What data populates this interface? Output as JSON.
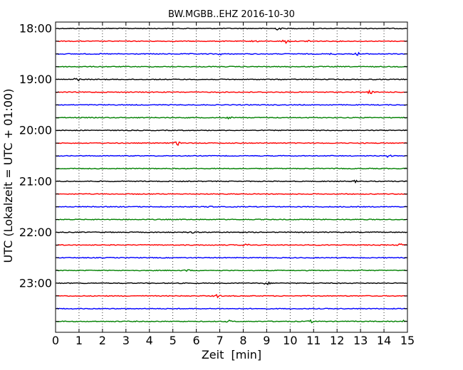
{
  "chart_data": {
    "type": "line",
    "title": "BW.MGBB..EHZ 2016-10-30",
    "xlabel": "Zeit  [min]",
    "ylabel": "UTC (Lokalzeit = UTC + 01:00)",
    "xlim": [
      0,
      15
    ],
    "xticks": [
      0,
      1,
      2,
      3,
      4,
      5,
      6,
      7,
      8,
      9,
      10,
      11,
      12,
      13,
      14,
      15
    ],
    "yticks": [
      "18:00",
      "19:00",
      "20:00",
      "21:00",
      "22:00",
      "23:00"
    ],
    "x_grid": "dotted vertical lines at each minute",
    "trace_interval_minutes": 15,
    "color_cycle": [
      "#000000",
      "#ff0000",
      "#0000ff",
      "#008000"
    ],
    "series": [
      {
        "start": "18:00",
        "events": [
          {
            "x": 9.5,
            "amp": 0.4
          }
        ]
      },
      {
        "start": "18:15",
        "events": [
          {
            "x": 8.5,
            "amp": 0.3
          },
          {
            "x": 9.8,
            "amp": 0.6
          },
          {
            "x": 10.8,
            "amp": 0.3
          }
        ]
      },
      {
        "start": "18:30",
        "events": [
          {
            "x": 7.0,
            "amp": 0.2
          },
          {
            "x": 11.8,
            "amp": 0.2
          },
          {
            "x": 12.9,
            "amp": 0.35
          }
        ]
      },
      {
        "start": "18:45",
        "events": []
      },
      {
        "start": "19:00",
        "events": [
          {
            "x": 0.9,
            "amp": 0.45
          }
        ]
      },
      {
        "start": "19:15",
        "events": [
          {
            "x": 13.4,
            "amp": 0.4
          }
        ]
      },
      {
        "start": "19:30",
        "events": []
      },
      {
        "start": "19:45",
        "events": [
          {
            "x": 7.4,
            "amp": 0.25
          }
        ]
      },
      {
        "start": "20:00",
        "events": []
      },
      {
        "start": "20:15",
        "events": [
          {
            "x": 5.2,
            "amp": 0.5
          }
        ]
      },
      {
        "start": "20:30",
        "events": [
          {
            "x": 14.2,
            "amp": 0.35
          }
        ]
      },
      {
        "start": "20:45",
        "events": []
      },
      {
        "start": "21:00",
        "events": [
          {
            "x": 12.8,
            "amp": 0.25
          }
        ]
      },
      {
        "start": "21:15",
        "events": []
      },
      {
        "start": "21:30",
        "events": [
          {
            "x": 6.6,
            "amp": 0.2
          }
        ]
      },
      {
        "start": "21:45",
        "events": []
      },
      {
        "start": "22:00",
        "events": [
          {
            "x": 5.8,
            "amp": 0.2
          }
        ]
      },
      {
        "start": "22:15",
        "events": [
          {
            "x": 8.1,
            "amp": 0.4
          },
          {
            "x": 14.7,
            "amp": 0.25
          }
        ]
      },
      {
        "start": "22:30",
        "events": []
      },
      {
        "start": "22:45",
        "events": [
          {
            "x": 5.6,
            "amp": 0.2
          },
          {
            "x": 13.0,
            "amp": 0.15
          }
        ]
      },
      {
        "start": "23:00",
        "events": [
          {
            "x": 9.0,
            "amp": 0.35
          }
        ]
      },
      {
        "start": "23:15",
        "events": [
          {
            "x": 6.9,
            "amp": 0.4
          }
        ]
      },
      {
        "start": "23:30",
        "events": []
      },
      {
        "start": "23:45",
        "events": [
          {
            "x": 7.4,
            "amp": 0.25
          },
          {
            "x": 10.9,
            "amp": 0.3
          },
          {
            "x": 14.9,
            "amp": 0.3
          }
        ]
      }
    ]
  }
}
